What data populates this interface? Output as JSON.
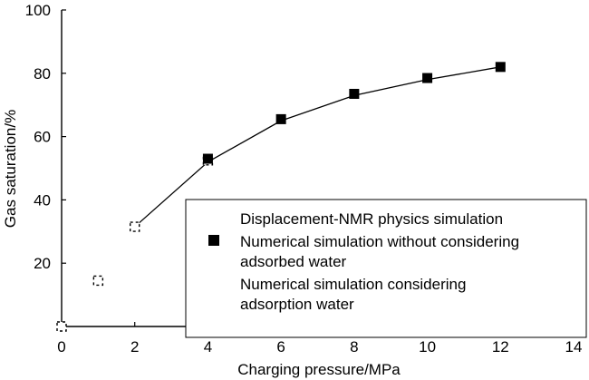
{
  "chart_data": {
    "type": "line",
    "title": "",
    "xlabel": "Charging pressure/MPa",
    "ylabel": "Gas saturation/%",
    "xlim": [
      0,
      14
    ],
    "ylim": [
      0,
      100
    ],
    "x_ticks": [
      "0",
      "2",
      "4",
      "6",
      "8",
      "10",
      "12",
      "14"
    ],
    "y_ticks": [
      "20",
      "40",
      "60",
      "80",
      "100"
    ],
    "grid": false,
    "legend_position": "lower-right",
    "series": [
      {
        "name": "Displacement-NMR physics simulation",
        "marker": "dashed-square",
        "x": [
          0,
          1,
          2,
          4
        ],
        "y": [
          0,
          14.5,
          31.5,
          52.5
        ]
      },
      {
        "name": "Numerical simulation without considering adsorbed water",
        "marker": "filled-square",
        "color": "#000000",
        "x": [
          4,
          6,
          8,
          10,
          12
        ],
        "y": [
          53,
          65.5,
          73.5,
          78.5,
          82
        ]
      },
      {
        "name": "Numerical simulation considering adsorption water",
        "marker": "line",
        "color": "#000000",
        "x": [
          2,
          4,
          6,
          8,
          10,
          12
        ],
        "y": [
          31.5,
          52,
          65,
          73,
          78,
          82
        ]
      }
    ],
    "legend": [
      {
        "lines": [
          "Displacement-NMR physics simulation"
        ]
      },
      {
        "lines": [
          "Numerical simulation without considering",
          "adsorbed water"
        ]
      },
      {
        "lines": [
          "Numerical simulation considering",
          "adsorption water"
        ]
      }
    ]
  }
}
